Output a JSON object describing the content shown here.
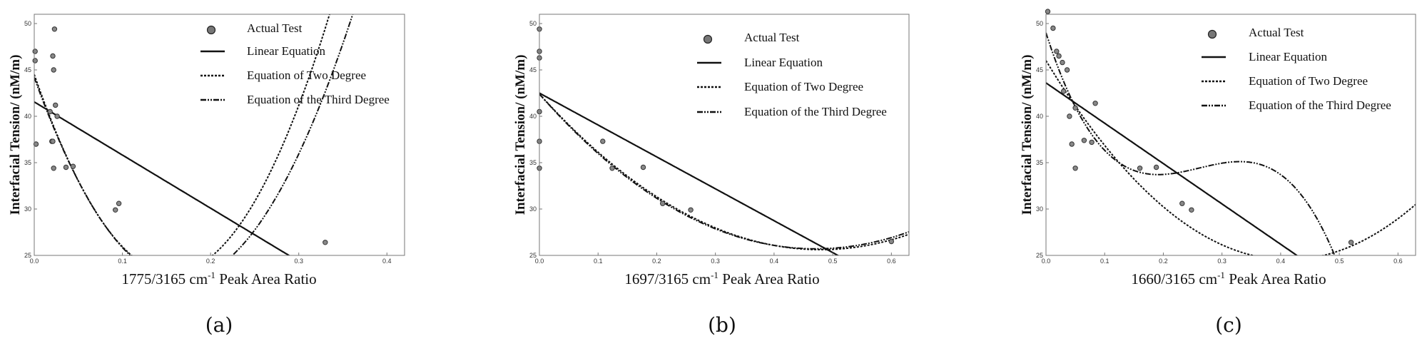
{
  "figure": {
    "panels": [
      "(a)",
      "(b)",
      "(c)"
    ]
  },
  "legend": {
    "scatter": "Actual Test",
    "linear": "Linear Equation",
    "quadratic": "Equation of Two Degree",
    "cubic": "Equation of the Third Degree"
  },
  "chart_data": [
    {
      "type": "scatter",
      "panel_label": "(a)",
      "xlabel_main": "1775/3165 cm",
      "xlabel_sup": "-1",
      "xlabel_tail": " Peak Area Ratio",
      "ylabel": "Interfacial Tension/ (nM/m)",
      "xlim": [
        0,
        0.42
      ],
      "ylim": [
        25,
        51
      ],
      "xticks": [
        0.0,
        0.1,
        0.2,
        0.3,
        0.4
      ],
      "xtick_labels": [
        "0.0",
        "0.1",
        "0.2",
        "0.3",
        "0.4"
      ],
      "yticks": [
        25,
        30,
        35,
        40,
        45,
        50
      ],
      "ytick_labels": [
        "25",
        "30",
        "35",
        "40",
        "45",
        "50"
      ],
      "points": [
        [
          0.001,
          47.0
        ],
        [
          0.001,
          46.0
        ],
        [
          0.002,
          37.0
        ],
        [
          0.018,
          40.5
        ],
        [
          0.02,
          37.3
        ],
        [
          0.021,
          37.3
        ],
        [
          0.021,
          46.5
        ],
        [
          0.022,
          34.4
        ],
        [
          0.022,
          45.0
        ],
        [
          0.023,
          49.4
        ],
        [
          0.024,
          41.2
        ],
        [
          0.026,
          40.0
        ],
        [
          0.036,
          34.5
        ],
        [
          0.044,
          34.6
        ],
        [
          0.092,
          29.9
        ],
        [
          0.096,
          30.6
        ],
        [
          0.33,
          26.4
        ]
      ],
      "linear": {
        "a": 41.55,
        "b": -57.3
      },
      "quadratic": {
        "c0": 44.5,
        "c1": -273,
        "c2": 873
      },
      "cubic": {
        "c0": 44.2,
        "c1": -264,
        "c2": 814,
        "c3": -86
      }
    },
    {
      "type": "scatter",
      "panel_label": "(b)",
      "xlabel_main": "1697/3165 cm",
      "xlabel_sup": "-1",
      "xlabel_tail": " Peak Area Ratio",
      "ylabel": "Interfacial Tension/ (nM/m)",
      "xlim": [
        0,
        0.63
      ],
      "ylim": [
        25,
        51
      ],
      "xticks": [
        0.0,
        0.1,
        0.2,
        0.3,
        0.4,
        0.5,
        0.6
      ],
      "xtick_labels": [
        "0.0",
        "0.1",
        "0.2",
        "0.3",
        "0.4",
        "0.5",
        "0.6"
      ],
      "yticks": [
        25,
        30,
        35,
        40,
        45,
        50
      ],
      "ytick_labels": [
        "25",
        "30",
        "35",
        "40",
        "45",
        "50"
      ],
      "points": [
        [
          0.0,
          49.4
        ],
        [
          0.0,
          47.0
        ],
        [
          0.0,
          46.3
        ],
        [
          0.0,
          40.5
        ],
        [
          0.0,
          37.3
        ],
        [
          0.0,
          34.4
        ],
        [
          0.108,
          37.3
        ],
        [
          0.124,
          34.4
        ],
        [
          0.177,
          34.5
        ],
        [
          0.21,
          30.6
        ],
        [
          0.258,
          29.9
        ],
        [
          0.6,
          26.5
        ]
      ],
      "linear": {
        "a": 42.5,
        "b": -34.4
      },
      "quadratic": {
        "c0": 42.4,
        "c1": -70,
        "c2": 73
      },
      "cubic": {
        "c0": 42.4,
        "c1": -72,
        "c2": 80,
        "c3": -5
      }
    },
    {
      "type": "scatter",
      "panel_label": "(c)",
      "xlabel_main": "1660/3165 cm",
      "xlabel_sup": "-1",
      "xlabel_tail": " Peak Area Ratio",
      "ylabel": "Interfacial Tension/ (nM/m)",
      "xlim": [
        0,
        0.63
      ],
      "ylim": [
        25,
        51
      ],
      "xticks": [
        0.0,
        0.1,
        0.2,
        0.3,
        0.4,
        0.5,
        0.6
      ],
      "xtick_labels": [
        "0.0",
        "0.1",
        "0.2",
        "0.3",
        "0.4",
        "0.5",
        "0.6"
      ],
      "yticks": [
        25,
        30,
        35,
        40,
        45,
        50
      ],
      "ytick_labels": [
        "25",
        "30",
        "35",
        "40",
        "45",
        "50"
      ],
      "points": [
        [
          0.003,
          51.3
        ],
        [
          0.012,
          49.5
        ],
        [
          0.018,
          47.0
        ],
        [
          0.022,
          46.5
        ],
        [
          0.028,
          45.8
        ],
        [
          0.03,
          42.7
        ],
        [
          0.036,
          45.0
        ],
        [
          0.04,
          40.0
        ],
        [
          0.044,
          37.0
        ],
        [
          0.05,
          40.9
        ],
        [
          0.05,
          34.4
        ],
        [
          0.065,
          37.4
        ],
        [
          0.078,
          37.2
        ],
        [
          0.084,
          41.4
        ],
        [
          0.16,
          34.4
        ],
        [
          0.188,
          34.5
        ],
        [
          0.232,
          30.6
        ],
        [
          0.248,
          29.9
        ],
        [
          0.52,
          26.4
        ]
      ],
      "linear": {
        "a": 43.6,
        "b": -43.5
      },
      "quadratic": {
        "c0": 46.0,
        "c1": -104,
        "c2": 126
      },
      "cubic": {
        "c0": 49.0,
        "c1": -198,
        "c2": 817,
        "c3": -1044
      }
    }
  ]
}
